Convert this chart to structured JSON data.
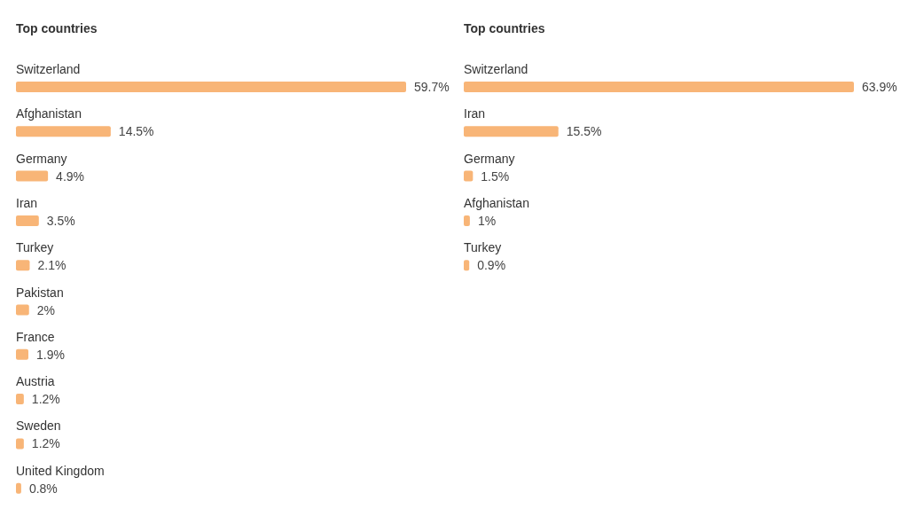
{
  "chart_data": [
    {
      "type": "bar",
      "orientation": "horizontal",
      "title": "Top countries",
      "color": "#f8b577",
      "categories": [
        "Switzerland",
        "Afghanistan",
        "Germany",
        "Iran",
        "Turkey",
        "Pakistan",
        "France",
        "Austria",
        "Sweden",
        "United Kingdom"
      ],
      "values": [
        59.7,
        14.5,
        4.9,
        3.5,
        2.1,
        2,
        1.9,
        1.2,
        1.2,
        0.8
      ],
      "value_labels": [
        "59.7%",
        "14.5%",
        "4.9%",
        "3.5%",
        "2.1%",
        "2%",
        "1.9%",
        "1.2%",
        "1.2%",
        "0.8%"
      ]
    },
    {
      "type": "bar",
      "orientation": "horizontal",
      "title": "Top countries",
      "color": "#f8b577",
      "categories": [
        "Switzerland",
        "Iran",
        "Germany",
        "Afghanistan",
        "Turkey"
      ],
      "values": [
        63.9,
        15.5,
        1.5,
        1,
        0.9
      ],
      "value_labels": [
        "63.9%",
        "15.5%",
        "1.5%",
        "1%",
        "0.9%"
      ]
    }
  ]
}
